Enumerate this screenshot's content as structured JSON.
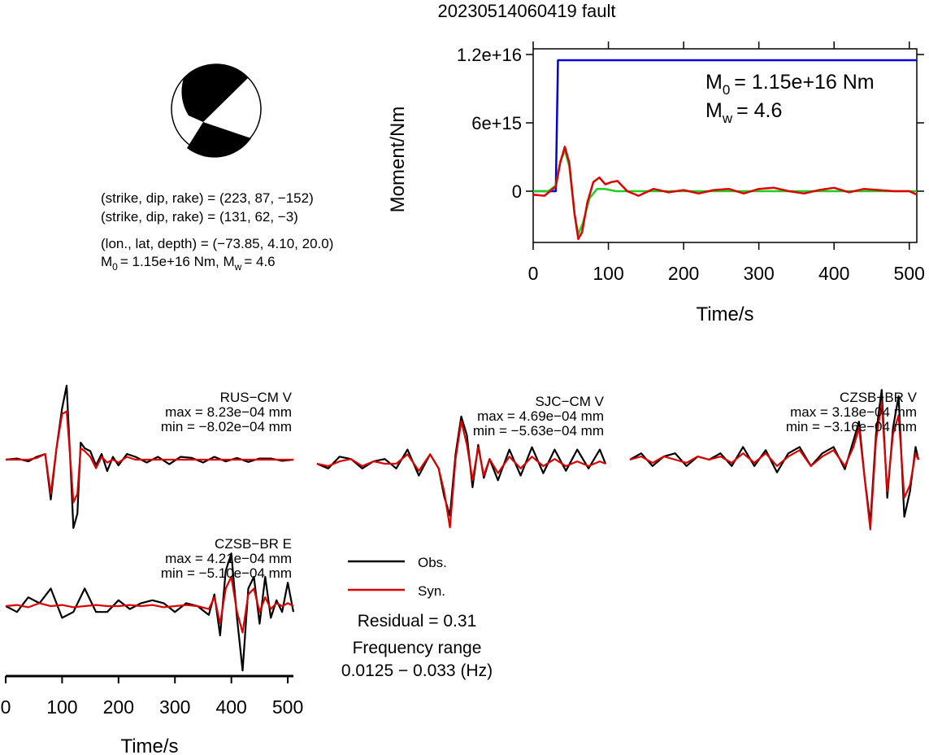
{
  "title": "20230514060419 fault",
  "beachball": {
    "nodal_planes": [
      {
        "strike": 223,
        "dip": 87,
        "rake": -152
      },
      {
        "strike": 131,
        "dip": 62,
        "rake": -3
      }
    ],
    "plane_prefix": "(strike, dip, rake) = ",
    "plane1_values": "(223, 87, −152)",
    "plane2_values": "(131, 62, −3)",
    "location_prefix": "(lon., lat, depth) = ",
    "location_values": "(−73.85, 4.10, 20.0)",
    "m0_text": "= 1.15e+16 Nm, M",
    "mw_text": "= 4.6"
  },
  "moment_panel": {
    "ylabel": "Moment/Nm",
    "xlabel": "Time/s",
    "m0_text": "= 1.15e+16 Nm",
    "mw_text": "= 4.6",
    "colors": {
      "cumulative": "#0000dd",
      "rate_a": "#22cc22",
      "rate_b": "#dd0000"
    }
  },
  "legend": {
    "obs": "Obs.",
    "syn": "Syn.",
    "obs_color": "#000000",
    "syn_color": "#dd0000"
  },
  "residual": "Residual = 0.31",
  "freq_title": "Frequency range",
  "freq_range": "0.0125 − 0.033 (Hz)",
  "wave_xlabel": "Time/s",
  "stations": [
    {
      "name": "RUS−CM V",
      "max": "max = 8.23e−04 mm",
      "min": "min = −8.02e−04 mm"
    },
    {
      "name": "SJC−CM V",
      "max": "max = 4.69e−04 mm",
      "min": "min = −5.63e−04 mm"
    },
    {
      "name": "CZSB−BR V",
      "max": "max = 3.18e−04 mm",
      "min": "min = −3.16e−04 mm"
    },
    {
      "name": "CZSB−BR E",
      "max": "max = 4.21e−04 mm",
      "min": "min = −5.10e−04 mm"
    }
  ],
  "chart_data": [
    {
      "type": "line",
      "title": "",
      "xlabel": "Time/s",
      "ylabel": "Moment/Nm",
      "xlim": [
        0,
        510
      ],
      "ylim": [
        -4500000000000000.0,
        1.25e+16
      ],
      "xticks": [
        0,
        100,
        200,
        300,
        400,
        500
      ],
      "xtick_labels": [
        "0",
        "100",
        "200",
        "300",
        "400",
        "500"
      ],
      "yticks": [
        0,
        6000000000000000.0,
        1.2e+16
      ],
      "ytick_labels": [
        "0",
        "6e+15",
        "1.2e+16"
      ],
      "series": [
        {
          "name": "",
          "color": "#0000dd",
          "x": [
            0,
            30,
            33,
            510
          ],
          "y": [
            0,
            0,
            1.15e+16,
            1.15e+16
          ]
        },
        {
          "name": "",
          "color": "#22cc22",
          "x": [
            0,
            20,
            30,
            36,
            42,
            48,
            55,
            60,
            66,
            75,
            85,
            95,
            110,
            130,
            510
          ],
          "y": [
            0,
            0,
            500000000000000.0,
            2600000000000000.0,
            3600000000000000.0,
            2200000000000000.0,
            -2000000000000000.0,
            -3800000000000000.0,
            -2800000000000000.0,
            -600000000000000.0,
            200000000000000.0,
            200000000000000.0,
            0,
            0,
            0
          ]
        },
        {
          "name": "",
          "color": "#dd0000",
          "x": [
            0,
            15,
            30,
            36,
            42,
            48,
            55,
            60,
            65,
            72,
            80,
            88,
            96,
            104,
            112,
            125,
            140,
            160,
            180,
            200,
            220,
            240,
            260,
            280,
            300,
            320,
            340,
            360,
            380,
            400,
            420,
            440,
            460,
            480,
            500,
            510
          ],
          "y": [
            -300000000000000.0,
            -400000000000000.0,
            400000000000000.0,
            2500000000000000.0,
            3900000000000000.0,
            2500000000000000.0,
            -2000000000000000.0,
            -4200000000000000.0,
            -3600000000000000.0,
            -1000000000000000.0,
            800000000000000.0,
            1200000000000000.0,
            600000000000000.0,
            800000000000000.0,
            900000000000000.0,
            0,
            -400000000000000.0,
            200000000000000.0,
            -100000000000000.0,
            100000000000000.0,
            -200000000000000.0,
            100000000000000.0,
            200000000000000.0,
            -200000000000000.0,
            200000000000000.0,
            300000000000000.0,
            0,
            -200000000000000.0,
            100000000000000.0,
            300000000000000.0,
            -100000000000000.0,
            200000000000000.0,
            100000000000000.0,
            0,
            0,
            -300000000000000.0
          ]
        }
      ]
    },
    {
      "type": "line",
      "title": "",
      "xlabel": "Time/s",
      "xlim": [
        0,
        510
      ],
      "xticks": [
        0,
        100,
        200,
        300,
        400,
        500
      ],
      "xtick_labels": [
        "0",
        "100",
        "200",
        "300",
        "400",
        "500"
      ],
      "traces": [
        {
          "station": "RUS−CM V",
          "x": [
            0,
            20,
            40,
            55,
            70,
            80,
            90,
            100,
            108,
            114,
            120,
            127,
            133,
            140,
            150,
            160,
            170,
            180,
            190,
            200,
            215,
            230,
            250,
            270,
            290,
            310,
            330,
            350,
            370,
            390,
            410,
            430,
            450,
            470,
            490,
            510
          ],
          "obs": [
            0,
            0.02,
            -0.03,
            0.05,
            0.1,
            -0.7,
            0.2,
            0.9,
            1.3,
            0.1,
            -1.2,
            -0.95,
            0.3,
            0.2,
            0.15,
            -0.1,
            0.1,
            -0.2,
            0.05,
            -0.1,
            0.1,
            0.05,
            -0.05,
            0.05,
            -0.08,
            0.05,
            0.03,
            -0.05,
            0.05,
            -0.03,
            0.03,
            -0.04,
            0.02,
            0.02,
            -0.02,
            0.0
          ],
          "syn": [
            0,
            0,
            0,
            0.03,
            0.1,
            -0.6,
            0.2,
            0.8,
            0.85,
            0.1,
            -0.75,
            -0.6,
            0.2,
            0.15,
            0.05,
            -0.15,
            0.05,
            -0.05,
            0.0,
            -0.05,
            0.05,
            0.0,
            0.0,
            0.0,
            0.0,
            0.0,
            0.0,
            0.0,
            0.0,
            0.0,
            0.0,
            0.0,
            0.0,
            0.0,
            0.0,
            0.0
          ]
        },
        {
          "station": "SJC−CM V",
          "x": [
            0,
            20,
            40,
            60,
            80,
            100,
            120,
            140,
            160,
            180,
            200,
            215,
            225,
            235,
            245,
            255,
            265,
            275,
            285,
            295,
            305,
            320,
            340,
            360,
            380,
            400,
            420,
            440,
            460,
            480,
            500,
            510
          ],
          "obs": [
            0,
            -0.1,
            0.15,
            0.1,
            -0.1,
            0.05,
            0.1,
            -0.1,
            0.3,
            -0.25,
            0.2,
            -0.1,
            -0.7,
            -1.1,
            0.2,
            1.0,
            0.6,
            -0.5,
            0.4,
            -0.3,
            0.1,
            -0.35,
            0.3,
            -0.25,
            0.35,
            -0.2,
            0.3,
            -0.15,
            0.3,
            -0.1,
            0.3,
            0.0
          ],
          "syn": [
            0,
            -0.05,
            0.05,
            0.1,
            -0.05,
            0.05,
            0.0,
            0.0,
            0.2,
            -0.15,
            0.2,
            -0.1,
            -0.6,
            -1.35,
            0.1,
            0.9,
            0.4,
            -0.35,
            0.35,
            -0.25,
            0.1,
            -0.2,
            0.15,
            -0.1,
            0.15,
            -0.05,
            0.1,
            -0.05,
            0.05,
            -0.05,
            0.05,
            0.0
          ]
        },
        {
          "station": "CZSB−BR V",
          "x": [
            0,
            20,
            40,
            60,
            80,
            100,
            120,
            140,
            160,
            180,
            200,
            220,
            240,
            260,
            280,
            300,
            320,
            340,
            360,
            380,
            395,
            405,
            415,
            425,
            435,
            445,
            455,
            465,
            475,
            485,
            495,
            505,
            510
          ],
          "obs": [
            0,
            0.1,
            -0.1,
            0.05,
            0.1,
            -0.1,
            0.05,
            0.0,
            0.1,
            -0.1,
            0.2,
            -0.1,
            0.15,
            -0.2,
            0.1,
            0.2,
            -0.1,
            0.1,
            0.2,
            -0.15,
            0.3,
            0.6,
            -0.3,
            -1.0,
            0.4,
            1.1,
            -0.6,
            0.5,
            1.0,
            -0.9,
            -0.5,
            0.2,
            0.0
          ],
          "syn": [
            0,
            0.05,
            -0.05,
            0.05,
            0.0,
            -0.05,
            0.05,
            0.0,
            0.05,
            -0.05,
            0.1,
            -0.05,
            0.1,
            -0.1,
            0.05,
            0.15,
            -0.1,
            0.05,
            0.15,
            -0.1,
            0.2,
            0.5,
            -0.3,
            -1.1,
            0.3,
            0.9,
            -0.5,
            0.4,
            0.7,
            -0.6,
            -0.4,
            0.1,
            0.0
          ]
        },
        {
          "station": "CZSB−BR E",
          "x": [
            0,
            20,
            40,
            60,
            80,
            100,
            120,
            140,
            160,
            180,
            200,
            220,
            240,
            260,
            280,
            300,
            320,
            340,
            360,
            370,
            380,
            390,
            400,
            410,
            420,
            430,
            440,
            450,
            460,
            470,
            480,
            490,
            500,
            510
          ],
          "obs": [
            0,
            -0.1,
            0.15,
            0.05,
            0.3,
            -0.2,
            -0.1,
            0.3,
            -0.1,
            -0.1,
            0.1,
            -0.05,
            0.05,
            0.1,
            0.05,
            -0.1,
            0.05,
            0.0,
            -0.15,
            0.2,
            -0.5,
            0.6,
            0.9,
            -0.2,
            -1.1,
            0.3,
            0.5,
            -0.3,
            0.5,
            -0.2,
            0.1,
            -0.1,
            0.4,
            -0.1
          ],
          "syn": [
            0,
            0.02,
            -0.02,
            0.05,
            0.0,
            0.02,
            -0.02,
            0.0,
            0.02,
            0.0,
            0.0,
            0.02,
            0.0,
            0.02,
            -0.02,
            0.0,
            0.02,
            0.0,
            -0.05,
            0.15,
            -0.3,
            0.3,
            0.5,
            -0.1,
            -0.45,
            0.2,
            0.3,
            -0.1,
            0.15,
            -0.05,
            0.05,
            0.0,
            0.05,
            0.0
          ]
        }
      ]
    }
  ]
}
